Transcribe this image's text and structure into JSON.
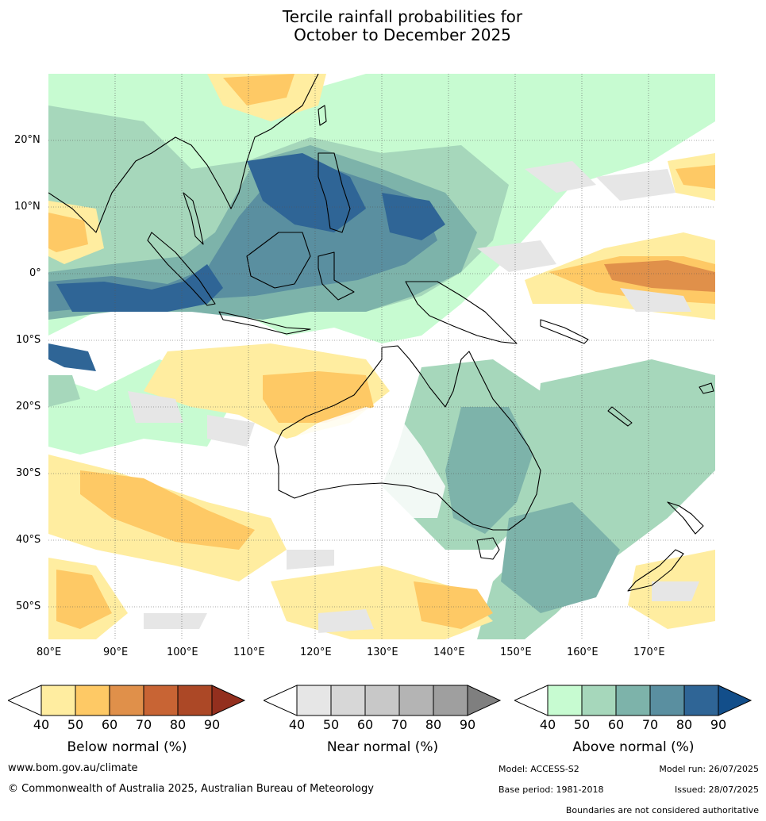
{
  "title_line1": "Tercile rainfall probabilities for",
  "title_line2": "October to December 2025",
  "lat_labels": [
    "20°N",
    "10°N",
    "0°",
    "10°S",
    "20°S",
    "30°S",
    "40°S",
    "50°S"
  ],
  "lon_labels": [
    "80°E",
    "90°E",
    "100°E",
    "110°E",
    "120°E",
    "130°E",
    "140°E",
    "150°E",
    "160°E",
    "170°E"
  ],
  "colorbars": [
    {
      "title": "Below normal (%)",
      "ticks": [
        "40",
        "50",
        "60",
        "70",
        "80",
        "90"
      ],
      "colors": [
        "#ffeda0",
        "#fec965",
        "#e0904a",
        "#c86434",
        "#ac4826",
        "#932f1e"
      ]
    },
    {
      "title": "Near normal (%)",
      "ticks": [
        "40",
        "50",
        "60",
        "70",
        "80",
        "90"
      ],
      "colors": [
        "#e6e6e6",
        "#d7d7d7",
        "#c8c8c8",
        "#b4b4b4",
        "#9f9f9f",
        "#7f7f7f"
      ]
    },
    {
      "title": "Above normal (%)",
      "ticks": [
        "40",
        "50",
        "60",
        "70",
        "80",
        "90"
      ],
      "colors": [
        "#c7fbd1",
        "#a6d7bb",
        "#7db3aa",
        "#5a8fa0",
        "#2f6596",
        "#124e8a"
      ]
    }
  ],
  "footer": {
    "url": "www.bom.gov.au/climate",
    "copyright": "© Commonwealth of Australia 2025, Australian Bureau of Meteorology",
    "model": "Model: ACCESS-S2",
    "model_run": "Model run: 26/07/2025",
    "base_period": "Base period: 1981-2018",
    "issued": "Issued: 28/07/2025",
    "boundaries": "Boundaries are not considered authoritative"
  }
}
